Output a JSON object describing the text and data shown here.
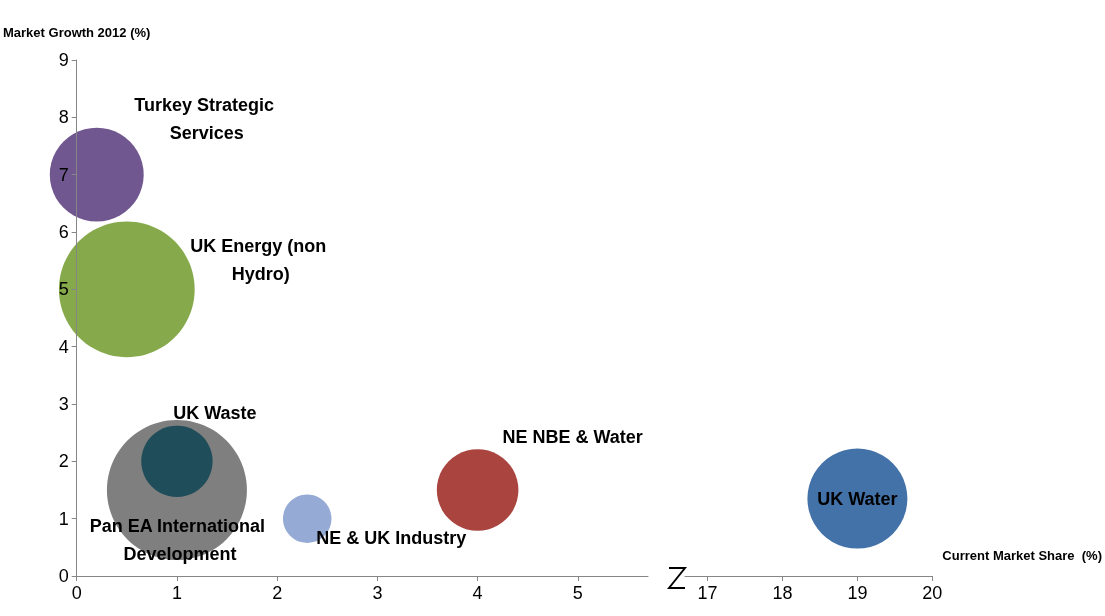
{
  "chart_data": [
    {
      "type": "bubble",
      "ylabel": "Market Growth 2012 (%)",
      "xlim": [
        0,
        5.7
      ],
      "xticks": [
        0,
        1,
        2,
        3,
        4,
        5
      ],
      "ylim": [
        0,
        9
      ],
      "yticks": [
        0,
        1,
        2,
        3,
        4,
        5,
        6,
        7,
        8,
        9
      ],
      "series": [
        {
          "name": "Turkey Strategic Services",
          "color": "#71578f",
          "x": [
            0.2
          ],
          "values": [
            7
          ],
          "sizes": [
            0.45
          ]
        },
        {
          "name": "UK Energy (non Hydro)",
          "color": "#86a94c",
          "x": [
            0.5
          ],
          "values": [
            5
          ],
          "sizes": [
            0.94
          ]
        },
        {
          "name": "Pan EA International Development",
          "color": "#7f7f7f",
          "x": [
            1
          ],
          "values": [
            1.5
          ],
          "sizes": [
            1
          ]
        },
        {
          "name": "UK Waste",
          "color": "#1f4e5a",
          "x": [
            1
          ],
          "values": [
            2
          ],
          "sizes": [
            0.26
          ]
        },
        {
          "name": "NE & UK Industry",
          "color": "#95abd5",
          "x": [
            2.3
          ],
          "values": [
            1
          ],
          "sizes": [
            0.12
          ]
        },
        {
          "name": "NE NBE & Water",
          "color": "#a9443f",
          "x": [
            4
          ],
          "values": [
            1.5
          ],
          "sizes": [
            0.34
          ]
        }
      ]
    },
    {
      "type": "bubble",
      "xlabel": "Current Market Share  (%)",
      "xlim": [
        16.7,
        20
      ],
      "xticks": [
        17,
        18,
        19,
        20
      ],
      "ylim": [
        0,
        9
      ],
      "tick_labels": "x",
      "series": [
        {
          "name": "UK Water",
          "color": "#4372a8",
          "x": [
            19
          ],
          "values": [
            1.35
          ],
          "sizes": [
            1
          ]
        }
      ]
    }
  ]
}
